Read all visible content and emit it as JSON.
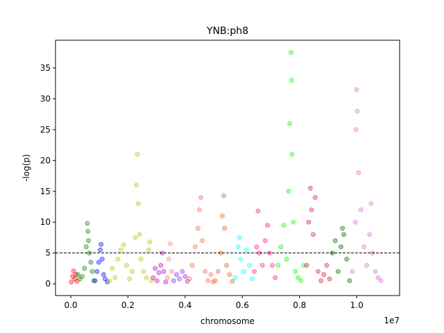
{
  "chart_data": {
    "type": "scatter",
    "title": "YNB:ph8",
    "xlabel": "chromosome",
    "ylabel": "-log(p)",
    "x_offset_label": "1e7",
    "xlim": [
      -534000,
      11500000
    ],
    "ylim": [
      -1.9,
      39.5
    ],
    "xticks": [
      {
        "value": 0,
        "label": "0.0"
      },
      {
        "value": 2000000,
        "label": "0.2"
      },
      {
        "value": 4000000,
        "label": "0.4"
      },
      {
        "value": 6000000,
        "label": "0.6"
      },
      {
        "value": 8000000,
        "label": "0.8"
      },
      {
        "value": 10000000,
        "label": "1.0"
      }
    ],
    "yticks": [
      0,
      5,
      10,
      15,
      20,
      25,
      30,
      35
    ],
    "hline": 5,
    "grid": false,
    "series": [
      {
        "color": "#ff0000",
        "x": [
          20000,
          60000,
          100000,
          140000,
          180000,
          220000
        ],
        "values": [
          0.3,
          1.2,
          2.1,
          0.8,
          1.5,
          0.4
        ]
      },
      {
        "color": "#008000",
        "x": [
          250000,
          320000,
          400000,
          480000,
          540000,
          580000,
          600000,
          620000,
          650000,
          700000,
          750000,
          800000
        ],
        "values": [
          1.5,
          0.8,
          1.2,
          2.5,
          6,
          9.8,
          8.5,
          7,
          5,
          3.5,
          2,
          0.5
        ]
      },
      {
        "color": "#0000ff",
        "x": [
          850000,
          920000,
          980000,
          1030000,
          1060000,
          1100000,
          1150000,
          1200000,
          1280000
        ],
        "values": [
          0.5,
          2,
          3.5,
          5.5,
          6.4,
          4,
          1.5,
          0.8,
          0.3
        ]
      },
      {
        "color": "#bfbf00",
        "x": [
          1350000,
          1450000,
          1550000,
          1650000,
          1750000,
          1850000,
          1950000,
          2050000,
          2150000,
          2250000,
          2300000,
          2330000,
          2360000,
          2400000,
          2450000,
          2550000,
          2650000,
          2720000,
          2760000,
          2820000
        ],
        "values": [
          0.5,
          2.5,
          1,
          4,
          5.5,
          6.3,
          3,
          0.8,
          2,
          7.5,
          16,
          21,
          13,
          8,
          4,
          2,
          1,
          5.5,
          6.8,
          0.5
        ]
      },
      {
        "color": "#bf00bf",
        "x": [
          2880000,
          2950000,
          3020000,
          3080000,
          3150000,
          3200000,
          3250000,
          3320000
        ],
        "values": [
          1,
          2.5,
          0.5,
          1.8,
          3,
          5,
          2,
          0.3
        ]
      },
      {
        "color": "#fa8072",
        "x": [
          3380000,
          3430000,
          3480000,
          3530000
        ],
        "values": [
          1,
          4,
          6.5,
          2
        ]
      },
      {
        "color": "#8a2be2",
        "x": [
          3600000,
          3700000,
          3800000,
          3900000,
          4000000,
          4080000
        ],
        "values": [
          0.5,
          1.5,
          0.8,
          2,
          1.2,
          0.4
        ]
      },
      {
        "color": "#ff6347",
        "x": [
          4150000,
          4250000,
          4350000,
          4450000,
          4500000,
          4550000,
          4600000,
          4700000,
          4800000,
          4900000,
          4980000
        ],
        "values": [
          0.8,
          3,
          6,
          9,
          12,
          14,
          7,
          2,
          0.5,
          1.5,
          0.3
        ]
      },
      {
        "color": "#d2691e",
        "x": [
          5050000,
          5150000,
          5250000,
          5300000,
          5350000,
          5380000,
          5450000,
          5550000,
          5650000
        ],
        "values": [
          0.5,
          2,
          5,
          11,
          14.3,
          9,
          3,
          1.5,
          0.4
        ]
      },
      {
        "color": "#00ffff",
        "x": [
          5750000,
          5850000,
          5900000,
          5950000,
          6050000,
          6150000,
          6250000,
          6350000
        ],
        "values": [
          1,
          6,
          7.5,
          4,
          2,
          5.5,
          3,
          0.8
        ]
      },
      {
        "color": "#ff1493",
        "x": [
          6420000,
          6500000,
          6550000,
          6600000,
          6700000,
          6800000,
          6880000,
          6950000,
          7050000,
          7150000
        ],
        "values": [
          2,
          6,
          11.8,
          5,
          3,
          7,
          9.5,
          5,
          3,
          1
        ]
      },
      {
        "color": "#00ff00",
        "x": [
          7250000,
          7350000,
          7450000,
          7550000,
          7620000,
          7660000,
          7700000,
          7720000,
          7740000,
          7780000,
          7850000,
          7950000,
          8050000,
          8150000
        ],
        "values": [
          3,
          6,
          9.5,
          4,
          15,
          26,
          37.5,
          33,
          21,
          10,
          2,
          1,
          0.5,
          3
        ]
      },
      {
        "color": "#dc143c",
        "x": [
          8250000,
          8320000,
          8380000,
          8420000,
          8480000,
          8550000,
          8650000,
          8750000,
          8850000,
          8950000,
          9050000
        ],
        "values": [
          3,
          10,
          15.5,
          12,
          8,
          14,
          2,
          0.5,
          1.5,
          3,
          0.8
        ]
      },
      {
        "color": "#006400",
        "x": [
          9150000,
          9250000,
          9350000,
          9450000,
          9500000,
          9550000,
          9650000,
          9750000
        ],
        "values": [
          5,
          7,
          2,
          6,
          9,
          8,
          4,
          0.5
        ]
      },
      {
        "color": "#da70d6",
        "x": [
          9850000,
          9950000,
          9980000,
          10000000,
          10020000,
          10060000,
          10150000,
          10250000,
          10350000,
          10450000,
          10500000,
          10550000,
          10650000,
          10750000,
          10850000
        ],
        "values": [
          2,
          10,
          25,
          31.5,
          28,
          18,
          12,
          6,
          3,
          8,
          13,
          5,
          2,
          1,
          0.5
        ]
      }
    ]
  }
}
